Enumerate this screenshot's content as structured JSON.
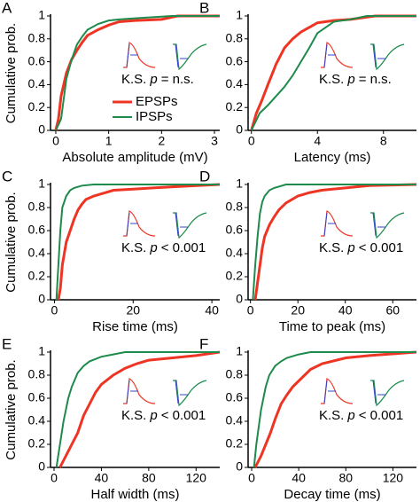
{
  "chart_data": [
    {
      "panel": "A",
      "type": "line",
      "ylabel": "Cumulative prob.",
      "xlabel": "Absolute amplitude (mV)",
      "xlim": [
        -0.1,
        3.1
      ],
      "xticks": [
        0,
        1,
        2,
        3
      ],
      "ylim": [
        0,
        1
      ],
      "yticks": [
        0,
        0.2,
        0.4,
        0.6,
        0.8,
        1
      ],
      "legend": true,
      "annotation": {
        "before": "K.S.",
        "italic": "p",
        "after": "= n.s."
      },
      "series": [
        {
          "name": "EPSPs",
          "color": "#ee3524",
          "x": [
            0,
            0.05,
            0.1,
            0.2,
            0.3,
            0.4,
            0.5,
            0.6,
            0.8,
            1.0,
            1.2,
            1.5,
            2.0,
            2.3,
            3.1
          ],
          "values": [
            0,
            0.1,
            0.3,
            0.5,
            0.62,
            0.7,
            0.77,
            0.83,
            0.88,
            0.92,
            0.95,
            0.96,
            0.97,
            1,
            1
          ]
        },
        {
          "name": "IPSPs",
          "color": "#1e8a4c",
          "x": [
            0,
            0.1,
            0.2,
            0.3,
            0.4,
            0.5,
            0.6,
            0.8,
            1.0,
            1.2,
            1.5,
            2.2,
            3.1
          ],
          "values": [
            0,
            0.1,
            0.45,
            0.62,
            0.75,
            0.82,
            0.88,
            0.93,
            0.96,
            0.97,
            0.98,
            1,
            1
          ]
        }
      ]
    },
    {
      "panel": "B",
      "type": "line",
      "xlabel": "Latency (ms)",
      "xlim": [
        -0.2,
        10
      ],
      "xticks": [
        0,
        4,
        8
      ],
      "ylim": [
        0,
        1
      ],
      "yticks": [
        0,
        0.2,
        0.4,
        0.6,
        0.8,
        1
      ],
      "annotation": {
        "before": "K.S.",
        "italic": "p",
        "after": "= n.s."
      },
      "series": [
        {
          "name": "EPSPs",
          "color": "#ee3524",
          "x": [
            0,
            0.3,
            0.6,
            1,
            1.5,
            2,
            2.5,
            3,
            3.5,
            4,
            5,
            6,
            7.5,
            10
          ],
          "values": [
            0,
            0.15,
            0.25,
            0.4,
            0.58,
            0.72,
            0.8,
            0.86,
            0.9,
            0.94,
            0.96,
            0.97,
            1,
            1
          ]
        },
        {
          "name": "IPSPs",
          "color": "#1e8a4c",
          "x": [
            0,
            0.5,
            1,
            1.5,
            2,
            2.5,
            3,
            3.5,
            4,
            4.5,
            5,
            6,
            7,
            10
          ],
          "values": [
            0,
            0.15,
            0.22,
            0.3,
            0.38,
            0.48,
            0.6,
            0.72,
            0.85,
            0.9,
            0.95,
            0.97,
            1,
            1
          ]
        }
      ]
    },
    {
      "panel": "C",
      "type": "line",
      "ylabel": "Cumulative prob.",
      "xlabel": "Rise time (ms)",
      "xlim": [
        -1,
        42
      ],
      "xticks": [
        0,
        20,
        40
      ],
      "ylim": [
        0,
        1
      ],
      "yticks": [
        0,
        0.2,
        0.4,
        0.6,
        0.8,
        1
      ],
      "annotation": {
        "before": "K.S.",
        "italic": "p",
        "after": "< 0.001"
      },
      "series": [
        {
          "name": "EPSPs",
          "color": "#ee3524",
          "x": [
            1,
            1.5,
            2,
            3,
            4,
            5,
            6,
            7,
            8,
            10,
            12,
            15,
            20,
            25,
            30,
            42
          ],
          "values": [
            0,
            0.1,
            0.3,
            0.5,
            0.6,
            0.7,
            0.78,
            0.83,
            0.87,
            0.9,
            0.92,
            0.95,
            0.96,
            0.97,
            0.98,
            1
          ]
        },
        {
          "name": "IPSPs",
          "color": "#1e8a4c",
          "x": [
            0.5,
            1,
            1.5,
            2,
            3,
            4,
            5,
            7,
            10,
            42
          ],
          "values": [
            0,
            0.3,
            0.6,
            0.8,
            0.9,
            0.95,
            0.97,
            0.99,
            1,
            1
          ]
        }
      ]
    },
    {
      "panel": "D",
      "type": "line",
      "xlabel": "Time to peak (ms)",
      "xlim": [
        -1,
        70
      ],
      "xticks": [
        0,
        20,
        40,
        60
      ],
      "ylim": [
        0,
        1
      ],
      "yticks": [
        0,
        0.2,
        0.4,
        0.6,
        0.8,
        1
      ],
      "annotation": {
        "before": "K.S.",
        "italic": "p",
        "after": "< 0.001"
      },
      "series": [
        {
          "name": "EPSPs",
          "color": "#ee3524",
          "x": [
            2,
            3,
            4,
            5,
            6,
            8,
            10,
            12,
            15,
            20,
            25,
            30,
            40,
            50,
            70
          ],
          "values": [
            0,
            0.15,
            0.3,
            0.45,
            0.55,
            0.65,
            0.72,
            0.78,
            0.84,
            0.9,
            0.93,
            0.95,
            0.97,
            0.99,
            1
          ]
        },
        {
          "name": "IPSPs",
          "color": "#1e8a4c",
          "x": [
            1,
            2,
            3,
            4,
            5,
            6,
            8,
            10,
            15,
            70
          ],
          "values": [
            0,
            0.3,
            0.55,
            0.75,
            0.85,
            0.9,
            0.95,
            0.97,
            1,
            1
          ]
        }
      ]
    },
    {
      "panel": "E",
      "type": "line",
      "ylabel": "Cumulative prob.",
      "xlabel": "Half width (ms)",
      "xlim": [
        -3,
        140
      ],
      "xticks": [
        0,
        40,
        80,
        120
      ],
      "ylim": [
        0,
        1
      ],
      "yticks": [
        0,
        0.2,
        0.4,
        0.6,
        0.8,
        1
      ],
      "annotation": {
        "before": "K.S.",
        "italic": "p",
        "after": "< 0.001"
      },
      "series": [
        {
          "name": "EPSPs",
          "color": "#ee3524",
          "x": [
            5,
            10,
            15,
            20,
            25,
            30,
            35,
            40,
            50,
            60,
            70,
            80,
            100,
            120,
            140
          ],
          "values": [
            0,
            0.1,
            0.2,
            0.3,
            0.45,
            0.55,
            0.65,
            0.72,
            0.8,
            0.86,
            0.9,
            0.93,
            0.95,
            0.97,
            1
          ]
        },
        {
          "name": "IPSPs",
          "color": "#1e8a4c",
          "x": [
            2,
            5,
            8,
            10,
            12,
            15,
            20,
            25,
            30,
            40,
            50,
            60,
            140
          ],
          "values": [
            0,
            0.2,
            0.4,
            0.5,
            0.6,
            0.7,
            0.82,
            0.88,
            0.92,
            0.96,
            0.98,
            1,
            1
          ]
        }
      ]
    },
    {
      "panel": "F",
      "type": "line",
      "xlabel": "Decay time (ms)",
      "xlim": [
        -3,
        140
      ],
      "xticks": [
        0,
        40,
        80,
        120
      ],
      "ylim": [
        0,
        1
      ],
      "yticks": [
        0,
        0.2,
        0.4,
        0.6,
        0.8,
        1
      ],
      "annotation": {
        "before": "K.S.",
        "italic": "p",
        "after": "< 0.001"
      },
      "series": [
        {
          "name": "EPSPs",
          "color": "#ee3524",
          "x": [
            3,
            8,
            12,
            16,
            20,
            25,
            30,
            35,
            40,
            50,
            60,
            80,
            100,
            140
          ],
          "values": [
            0,
            0.1,
            0.2,
            0.3,
            0.42,
            0.55,
            0.63,
            0.7,
            0.75,
            0.85,
            0.9,
            0.95,
            0.97,
            1
          ]
        },
        {
          "name": "IPSPs",
          "color": "#1e8a4c",
          "x": [
            2,
            4,
            6,
            8,
            10,
            12,
            15,
            20,
            25,
            30,
            40,
            50,
            140
          ],
          "values": [
            0,
            0.2,
            0.35,
            0.5,
            0.6,
            0.7,
            0.8,
            0.88,
            0.92,
            0.95,
            0.98,
            1,
            1
          ]
        }
      ]
    }
  ]
}
